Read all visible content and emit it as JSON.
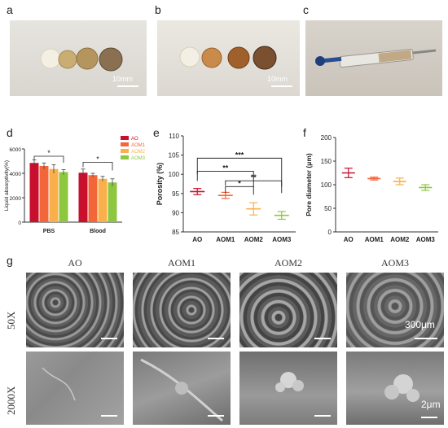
{
  "panels": {
    "a": {
      "label": "a",
      "scale": "10mm"
    },
    "b": {
      "label": "b",
      "scale": "10mm"
    },
    "c": {
      "label": "c"
    },
    "d": {
      "label": "d"
    },
    "e": {
      "label": "e"
    },
    "f": {
      "label": "f"
    },
    "g": {
      "label": "g"
    }
  },
  "sem": {
    "columns": [
      "AO",
      "AOM1",
      "AOM2",
      "AOM3"
    ],
    "rows": [
      "50X",
      "2000X"
    ],
    "scale_50x": "300μm",
    "scale_2000x": "2μm"
  },
  "colors": {
    "AO": "#c8102e",
    "AOM1": "#f2663a",
    "AOM2": "#f9b04a",
    "AOM3": "#8dc63f"
  },
  "chart_data": [
    {
      "panel": "d",
      "type": "bar",
      "categories": [
        "PBS",
        "Blood"
      ],
      "series": [
        {
          "name": "AO",
          "values": [
            4850,
            4050
          ],
          "errors": [
            250,
            300
          ]
        },
        {
          "name": "AOM1",
          "values": [
            4600,
            3850
          ],
          "errors": [
            250,
            150
          ]
        },
        {
          "name": "AOM2",
          "values": [
            4350,
            3550
          ],
          "errors": [
            350,
            200
          ]
        },
        {
          "name": "AOM3",
          "values": [
            4100,
            3250
          ],
          "errors": [
            200,
            300
          ]
        }
      ],
      "ylabel": "Liquid absorptivity(%)",
      "ylim": [
        0,
        6000
      ],
      "yticks": [
        "0",
        "2000",
        "4000",
        "6000"
      ],
      "significance": [
        "*",
        "*"
      ],
      "legend": "top-right"
    },
    {
      "panel": "e",
      "type": "scatter",
      "categories": [
        "AO",
        "AOM1",
        "AOM2",
        "AOM3"
      ],
      "values": [
        95.5,
        94.5,
        91.0,
        89.3
      ],
      "errors": [
        0.8,
        0.8,
        1.6,
        1.0
      ],
      "ylabel": "Porosity (%)",
      "ylim": [
        85,
        110
      ],
      "yticks": [
        "85",
        "90",
        "95",
        "100",
        "105",
        "110"
      ],
      "significance": [
        "***",
        "**",
        "*",
        "**"
      ]
    },
    {
      "panel": "f",
      "type": "scatter",
      "categories": [
        "AO",
        "AOM1",
        "AOM2",
        "AOM3"
      ],
      "values": [
        125,
        113,
        107,
        94
      ],
      "errors": [
        10,
        3,
        7,
        6
      ],
      "ylabel": "Pore diameter (μm)",
      "ylim": [
        0,
        200
      ],
      "yticks": [
        "0",
        "50",
        "100",
        "150",
        "200"
      ]
    }
  ]
}
